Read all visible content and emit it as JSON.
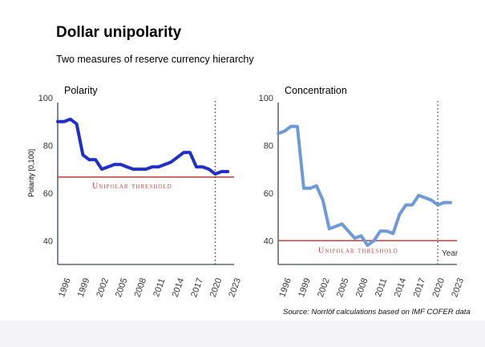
{
  "header": {
    "title": "Dollar unipolarity",
    "subtitle": "Two measures of reserve currency hierarchy"
  },
  "source": "Source: Norrlöf calculations based on IMF COFER data",
  "colors": {
    "line": "#1f2fc8",
    "line2": "#6f9ad8",
    "threshold": "#c04848",
    "axis": "#5a6a78"
  },
  "chart_data": [
    {
      "type": "line",
      "title": "Polarity",
      "ylabel": "Polarity [0,100]",
      "xlabel": "",
      "ylim": [
        30,
        100
      ],
      "xlim": [
        1995,
        2023
      ],
      "yticks": [
        40,
        60,
        80,
        100
      ],
      "xticks": [
        "1996",
        "1999",
        "2002",
        "2005",
        "2008",
        "2011",
        "2014",
        "2017",
        "2020",
        "2023"
      ],
      "vline": 2020,
      "threshold": {
        "value": 66.7,
        "label": "Unipolar threshold"
      },
      "series": [
        {
          "name": "Polarity",
          "x": [
            1995,
            1996,
            1997,
            1998,
            1999,
            2000,
            2001,
            2002,
            2003,
            2004,
            2005,
            2006,
            2007,
            2008,
            2009,
            2010,
            2011,
            2012,
            2013,
            2014,
            2015,
            2016,
            2017,
            2018,
            2019,
            2020,
            2021,
            2022
          ],
          "values": [
            90,
            90,
            91,
            89,
            76,
            74,
            74,
            70,
            71,
            72,
            72,
            71,
            70,
            70,
            70,
            71,
            71,
            72,
            73,
            75,
            77,
            77,
            71,
            71,
            70,
            68,
            69,
            69
          ]
        }
      ]
    },
    {
      "type": "line",
      "title": "Concentration",
      "ylabel": "",
      "xlabel": "Year",
      "ylim": [
        30,
        100
      ],
      "xlim": [
        1995,
        2023
      ],
      "yticks": [
        40,
        60,
        80,
        100
      ],
      "xticks": [
        "1996",
        "1999",
        "2002",
        "2005",
        "2008",
        "2011",
        "2014",
        "2017",
        "2020",
        "2023"
      ],
      "vline": 2020,
      "threshold": {
        "value": 40,
        "label": "Unipolar threshold"
      },
      "series": [
        {
          "name": "Concentration",
          "x": [
            1995,
            1996,
            1997,
            1998,
            1999,
            2000,
            2001,
            2002,
            2003,
            2004,
            2005,
            2006,
            2007,
            2008,
            2009,
            2010,
            2011,
            2012,
            2013,
            2014,
            2015,
            2016,
            2017,
            2018,
            2019,
            2020,
            2021,
            2022
          ],
          "values": [
            85,
            86,
            88,
            88,
            62,
            62,
            63,
            57,
            45,
            46,
            47,
            44,
            41,
            42,
            38,
            40,
            44,
            44,
            43,
            51,
            55,
            55,
            59,
            58,
            57,
            55,
            56,
            56
          ]
        }
      ]
    }
  ]
}
